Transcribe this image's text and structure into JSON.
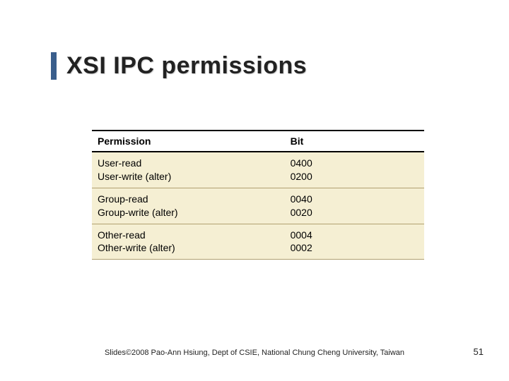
{
  "title": "XSI IPC permissions",
  "accent_color": "#3a5e8c",
  "table": {
    "headers": [
      "Permission",
      "Bit"
    ],
    "rows": [
      {
        "perm": "User-read\nUser-write (alter)",
        "bit": "0400\n0200"
      },
      {
        "perm": "Group-read\nGroup-write (alter)",
        "bit": "0040\n0020"
      },
      {
        "perm": "Other-read\nOther-write (alter)",
        "bit": "0004\n0002"
      }
    ],
    "row_bg": "#f5efd3",
    "border_color": "#b0a070",
    "header_fontsize": 14,
    "cell_fontsize": 14
  },
  "footer": "Slides©2008 Pao-Ann Hsiung, Dept of CSIE, National Chung Cheng University, Taiwan",
  "page_number": "51"
}
